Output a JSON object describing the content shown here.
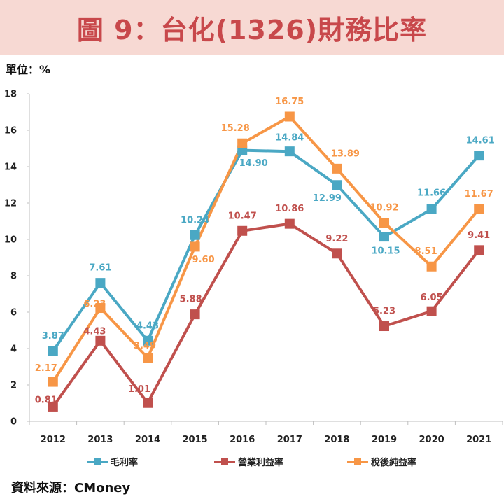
{
  "title": "圖 9：台化(1326)財務比率",
  "unit": "單位：%",
  "source": "資料來源：CMoney",
  "chart_data": {
    "type": "line",
    "title": "圖 9：台化(1326)財務比率",
    "categories": [
      "2012",
      "2013",
      "2014",
      "2015",
      "2016",
      "2017",
      "2018",
      "2019",
      "2020",
      "2021"
    ],
    "ylim": [
      0,
      18
    ],
    "yticks": [
      0,
      2,
      4,
      6,
      8,
      10,
      12,
      14,
      16,
      18
    ],
    "ylabel": "單位：%",
    "grid": false,
    "legend_position": "bottom",
    "series": [
      {
        "name": "毛利率",
        "color": "#4aa8c4",
        "values": [
          3.87,
          7.61,
          4.43,
          10.24,
          14.9,
          14.84,
          12.99,
          10.15,
          11.66,
          14.61
        ],
        "labels": [
          "3.87",
          "7.61",
          "4.43",
          "10.24",
          "14.90",
          "14.84",
          "12.99",
          "10.15",
          "11.66",
          "14.61"
        ]
      },
      {
        "name": "營業利益率",
        "color": "#c0504d",
        "values": [
          0.81,
          4.43,
          1.01,
          5.88,
          10.47,
          10.86,
          9.22,
          5.23,
          6.05,
          9.41
        ],
        "labels": [
          "0.81",
          "4.43",
          "1.01",
          "5.88",
          "10.47",
          "10.86",
          "9.22",
          "5.23",
          "6.05",
          "9.41"
        ]
      },
      {
        "name": "稅後純益率",
        "color": "#f79646",
        "values": [
          2.17,
          6.23,
          3.49,
          9.6,
          15.28,
          16.75,
          13.89,
          10.92,
          8.51,
          11.67
        ],
        "labels": [
          "2.17",
          "6.23",
          "3.49",
          "9.60",
          "15.28",
          "16.75",
          "13.89",
          "10.92",
          "8.51",
          "11.67"
        ]
      }
    ]
  }
}
